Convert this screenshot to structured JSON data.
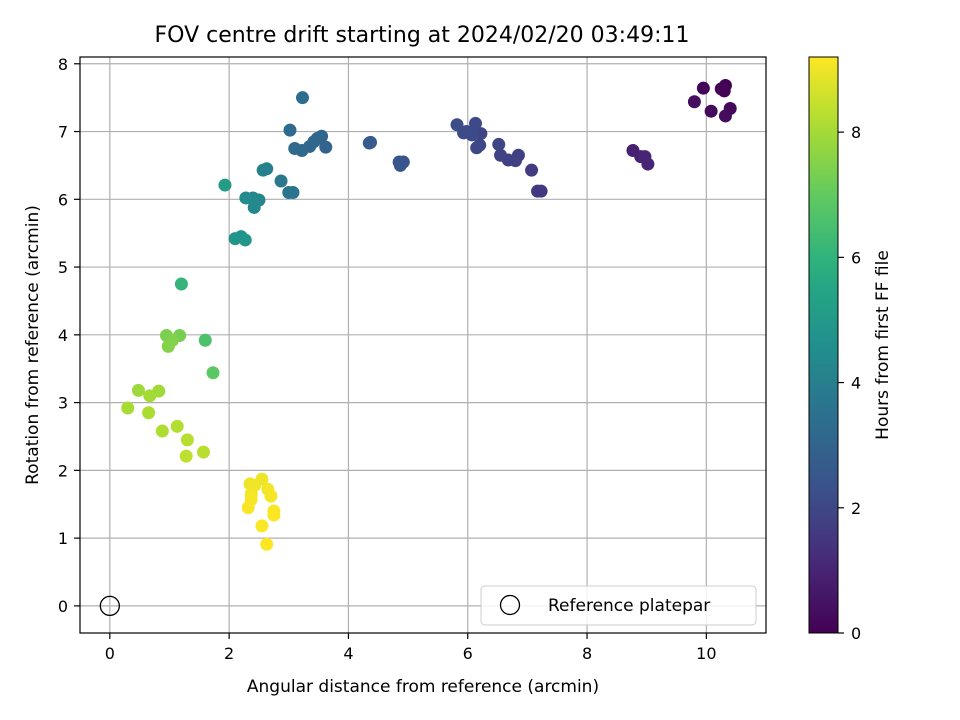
{
  "chart_data": {
    "type": "scatter",
    "title": "FOV centre drift starting at 2024/02/20 03:49:11",
    "xlabel": "Angular distance from reference (arcmin)",
    "ylabel": "Rotation from reference (arcmin)",
    "xlim": [
      -0.5,
      11
    ],
    "ylim": [
      -0.4,
      8.1
    ],
    "xticks": [
      0,
      2,
      4,
      6,
      8,
      10
    ],
    "yticks": [
      0,
      1,
      2,
      3,
      4,
      5,
      6,
      7,
      8
    ],
    "grid": true,
    "legend": {
      "placement": "lower-right",
      "label": "Reference platepar"
    },
    "reference_point": {
      "x": 0,
      "y": 0,
      "marker": "hollow-circle"
    },
    "colorbar": {
      "label": "Hours from first FF file",
      "colormap": "viridis",
      "range": [
        0,
        9.2
      ],
      "ticks": [
        0,
        2,
        4,
        6,
        8
      ]
    },
    "points": [
      {
        "x": 10.32,
        "y": 7.68,
        "c": 0.0
      },
      {
        "x": 10.25,
        "y": 7.63,
        "c": 0.05
      },
      {
        "x": 10.3,
        "y": 7.6,
        "c": 0.1
      },
      {
        "x": 9.95,
        "y": 7.64,
        "c": 0.15
      },
      {
        "x": 10.4,
        "y": 7.34,
        "c": 0.2
      },
      {
        "x": 10.08,
        "y": 7.3,
        "c": 0.25
      },
      {
        "x": 10.32,
        "y": 7.23,
        "c": 0.3
      },
      {
        "x": 9.8,
        "y": 7.44,
        "c": 0.35
      },
      {
        "x": 8.77,
        "y": 6.72,
        "c": 0.9
      },
      {
        "x": 8.9,
        "y": 6.63,
        "c": 0.95
      },
      {
        "x": 8.97,
        "y": 6.63,
        "c": 1.0
      },
      {
        "x": 9.02,
        "y": 6.52,
        "c": 1.05
      },
      {
        "x": 7.17,
        "y": 6.12,
        "c": 1.6
      },
      {
        "x": 7.23,
        "y": 6.12,
        "c": 1.62
      },
      {
        "x": 7.07,
        "y": 6.43,
        "c": 1.68
      },
      {
        "x": 6.85,
        "y": 6.65,
        "c": 1.75
      },
      {
        "x": 6.8,
        "y": 6.57,
        "c": 1.78
      },
      {
        "x": 6.68,
        "y": 6.58,
        "c": 1.82
      },
      {
        "x": 6.55,
        "y": 6.65,
        "c": 1.86
      },
      {
        "x": 6.52,
        "y": 6.81,
        "c": 1.9
      },
      {
        "x": 6.22,
        "y": 6.97,
        "c": 1.94
      },
      {
        "x": 6.2,
        "y": 6.8,
        "c": 1.98
      },
      {
        "x": 6.15,
        "y": 6.76,
        "c": 2.02
      },
      {
        "x": 6.13,
        "y": 7.12,
        "c": 2.06
      },
      {
        "x": 6.07,
        "y": 6.95,
        "c": 2.1
      },
      {
        "x": 5.98,
        "y": 7.0,
        "c": 2.14
      },
      {
        "x": 5.93,
        "y": 6.98,
        "c": 2.16
      },
      {
        "x": 5.82,
        "y": 7.1,
        "c": 2.2
      },
      {
        "x": 4.92,
        "y": 6.55,
        "c": 2.45
      },
      {
        "x": 4.85,
        "y": 6.55,
        "c": 2.48
      },
      {
        "x": 4.87,
        "y": 6.5,
        "c": 2.5
      },
      {
        "x": 4.35,
        "y": 6.83,
        "c": 2.65
      },
      {
        "x": 4.37,
        "y": 6.84,
        "c": 2.67
      },
      {
        "x": 3.62,
        "y": 6.77,
        "c": 3.0
      },
      {
        "x": 3.55,
        "y": 6.93,
        "c": 3.04
      },
      {
        "x": 3.48,
        "y": 6.9,
        "c": 3.08
      },
      {
        "x": 3.42,
        "y": 6.85,
        "c": 3.12
      },
      {
        "x": 3.35,
        "y": 6.78,
        "c": 3.16
      },
      {
        "x": 3.22,
        "y": 6.72,
        "c": 3.2
      },
      {
        "x": 3.1,
        "y": 6.75,
        "c": 3.24
      },
      {
        "x": 3.02,
        "y": 7.02,
        "c": 3.3
      },
      {
        "x": 3.23,
        "y": 7.5,
        "c": 3.35
      },
      {
        "x": 3.07,
        "y": 6.1,
        "c": 3.55
      },
      {
        "x": 3.0,
        "y": 6.1,
        "c": 3.6
      },
      {
        "x": 2.87,
        "y": 6.27,
        "c": 3.7
      },
      {
        "x": 2.63,
        "y": 6.45,
        "c": 4.0
      },
      {
        "x": 2.57,
        "y": 6.43,
        "c": 4.05
      },
      {
        "x": 2.5,
        "y": 5.99,
        "c": 4.2
      },
      {
        "x": 2.4,
        "y": 6.02,
        "c": 4.25
      },
      {
        "x": 2.43,
        "y": 5.96,
        "c": 4.3
      },
      {
        "x": 2.42,
        "y": 5.88,
        "c": 4.35
      },
      {
        "x": 2.28,
        "y": 6.02,
        "c": 4.4
      },
      {
        "x": 2.2,
        "y": 5.45,
        "c": 4.7
      },
      {
        "x": 2.1,
        "y": 5.42,
        "c": 4.8
      },
      {
        "x": 2.27,
        "y": 5.4,
        "c": 4.85
      },
      {
        "x": 1.93,
        "y": 6.21,
        "c": 5.1
      },
      {
        "x": 1.2,
        "y": 4.75,
        "c": 6.1
      },
      {
        "x": 1.6,
        "y": 3.92,
        "c": 6.6
      },
      {
        "x": 1.73,
        "y": 3.44,
        "c": 6.9
      },
      {
        "x": 1.17,
        "y": 3.99,
        "c": 7.3
      },
      {
        "x": 0.95,
        "y": 3.99,
        "c": 7.4
      },
      {
        "x": 1.05,
        "y": 3.92,
        "c": 7.45
      },
      {
        "x": 0.98,
        "y": 3.83,
        "c": 7.5
      },
      {
        "x": 0.48,
        "y": 3.18,
        "c": 7.9
      },
      {
        "x": 0.82,
        "y": 3.17,
        "c": 7.95
      },
      {
        "x": 0.67,
        "y": 3.1,
        "c": 8.0
      },
      {
        "x": 0.3,
        "y": 2.92,
        "c": 8.05
      },
      {
        "x": 0.65,
        "y": 2.85,
        "c": 8.1
      },
      {
        "x": 0.88,
        "y": 2.58,
        "c": 8.15
      },
      {
        "x": 1.13,
        "y": 2.65,
        "c": 8.2
      },
      {
        "x": 1.3,
        "y": 2.45,
        "c": 8.25
      },
      {
        "x": 1.57,
        "y": 2.27,
        "c": 8.3
      },
      {
        "x": 1.28,
        "y": 2.21,
        "c": 8.35
      },
      {
        "x": 2.55,
        "y": 1.87,
        "c": 9.0
      },
      {
        "x": 2.35,
        "y": 1.8,
        "c": 9.02
      },
      {
        "x": 2.43,
        "y": 1.78,
        "c": 9.04
      },
      {
        "x": 2.65,
        "y": 1.72,
        "c": 9.06
      },
      {
        "x": 2.37,
        "y": 1.65,
        "c": 9.08
      },
      {
        "x": 2.7,
        "y": 1.62,
        "c": 9.1
      },
      {
        "x": 2.37,
        "y": 1.57,
        "c": 9.12
      },
      {
        "x": 2.32,
        "y": 1.45,
        "c": 9.14
      },
      {
        "x": 2.75,
        "y": 1.4,
        "c": 9.16
      },
      {
        "x": 2.75,
        "y": 1.34,
        "c": 9.17
      },
      {
        "x": 2.55,
        "y": 1.18,
        "c": 9.18
      },
      {
        "x": 2.63,
        "y": 0.91,
        "c": 9.2
      }
    ]
  }
}
